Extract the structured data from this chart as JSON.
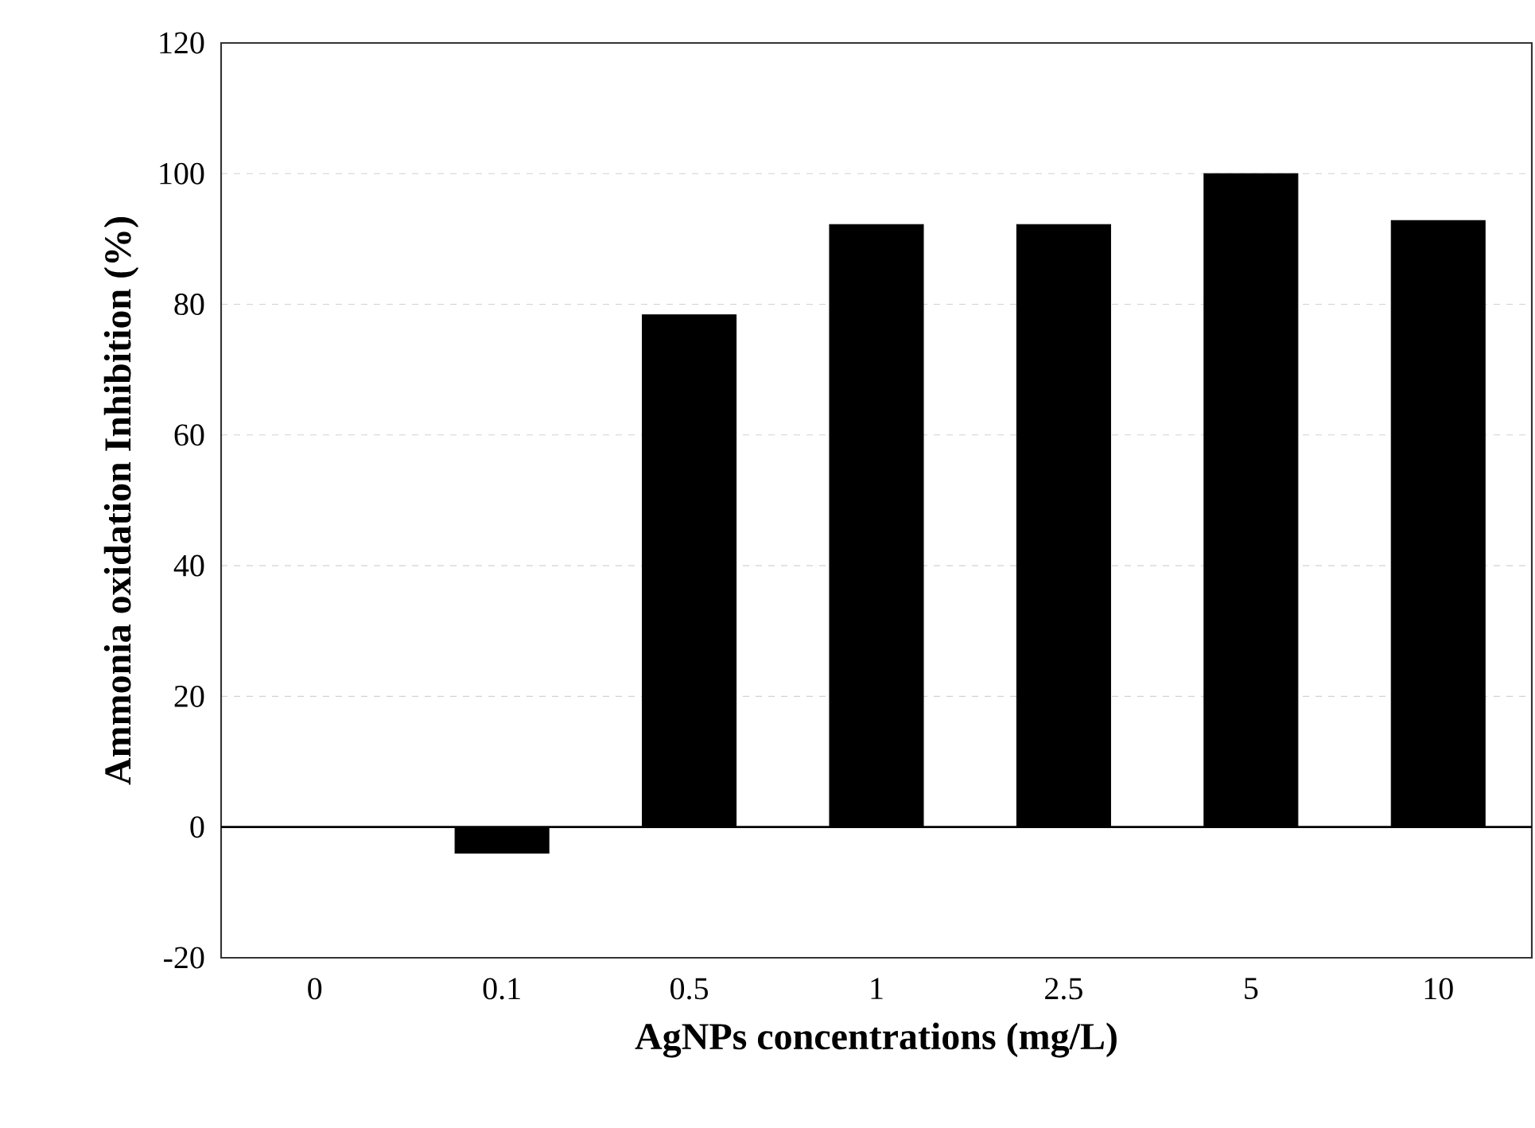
{
  "chart_data": {
    "type": "bar",
    "xlabel": "AgNPs concentrations (mg/L)",
    "ylabel": "Ammonia oxidation Inhibition (%)",
    "categories": [
      "0",
      "0.1",
      "0.5",
      "1",
      "2.5",
      "5",
      "10"
    ],
    "values": [
      0,
      -4.0,
      78.4,
      92.2,
      92.2,
      100,
      92.8
    ],
    "color": "#000000",
    "ylim": [
      -20,
      120
    ],
    "yticks": [
      -20,
      0,
      20,
      40,
      60,
      80,
      100,
      120
    ],
    "grid": "y"
  }
}
